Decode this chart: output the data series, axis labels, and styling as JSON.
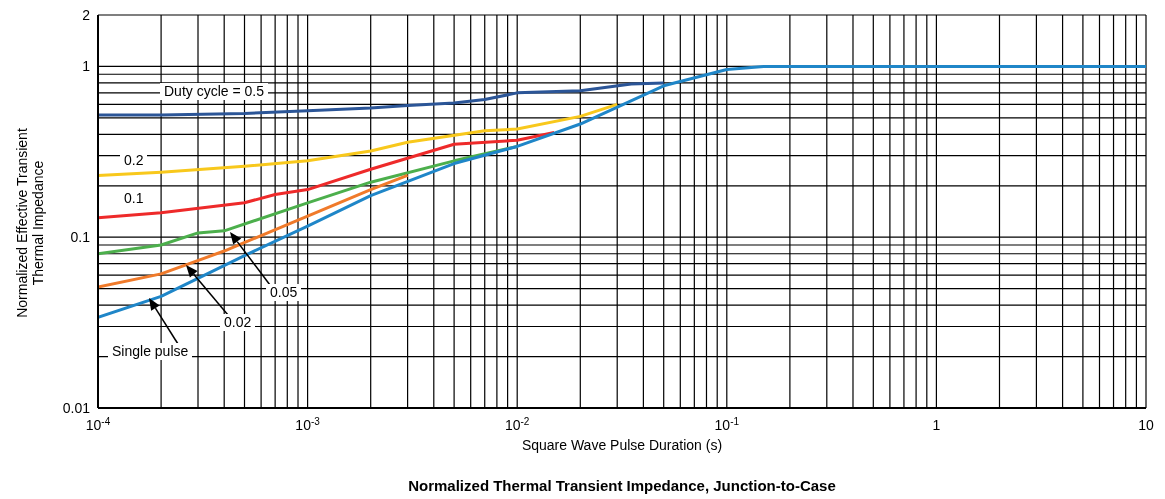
{
  "chart_data": {
    "type": "line",
    "title": "Normalized Thermal Transient Impedance, Junction-to-Case",
    "xlabel": "Square Wave Pulse Duration (s)",
    "ylabel": "Normalized Effective Transient Thermal Impedance",
    "log": "xy",
    "grid": true,
    "legend": false,
    "marker": "none",
    "line_style": "solid",
    "xlim": [
      0.0001,
      10
    ],
    "ylim": [
      0.01,
      2
    ],
    "xticks": [
      {
        "value": 0.0001,
        "label": "10$^{-4}$"
      },
      {
        "value": 0.0002,
        "label": null
      },
      {
        "value": 0.0003,
        "label": null
      },
      {
        "value": 0.0004,
        "label": null
      },
      {
        "value": 0.0005,
        "label": null
      },
      {
        "value": 0.0006,
        "label": null
      },
      {
        "value": 0.0007,
        "label": null
      },
      {
        "value": 0.0008,
        "label": null
      },
      {
        "value": 0.0009,
        "label": null
      },
      {
        "value": 0.001,
        "label": "10$^{-3}$"
      },
      {
        "value": 0.002,
        "label": null
      },
      {
        "value": 0.003,
        "label": null
      },
      {
        "value": 0.004,
        "label": null
      },
      {
        "value": 0.005,
        "label": null
      },
      {
        "value": 0.006,
        "label": null
      },
      {
        "value": 0.007,
        "label": null
      },
      {
        "value": 0.008,
        "label": null
      },
      {
        "value": 0.009,
        "label": null
      },
      {
        "value": 0.01,
        "label": "10$^{-2}$"
      },
      {
        "value": 0.02,
        "label": null
      },
      {
        "value": 0.03,
        "label": null
      },
      {
        "value": 0.04,
        "label": null
      },
      {
        "value": 0.05,
        "label": null
      },
      {
        "value": 0.06,
        "label": null
      },
      {
        "value": 0.07,
        "label": null
      },
      {
        "value": 0.08,
        "label": null
      },
      {
        "value": 0.09,
        "label": null
      },
      {
        "value": 0.1,
        "label": "10$^{-1}$"
      },
      {
        "value": 0.2,
        "label": null
      },
      {
        "value": 0.3,
        "label": null
      },
      {
        "value": 0.4,
        "label": null
      },
      {
        "value": 0.5,
        "label": null
      },
      {
        "value": 0.6,
        "label": null
      },
      {
        "value": 0.7,
        "label": null
      },
      {
        "value": 0.8,
        "label": null
      },
      {
        "value": 0.9,
        "label": null
      },
      1,
      {
        "value": 2,
        "label": null
      },
      {
        "value": 3,
        "label": null
      },
      {
        "value": 4,
        "label": null
      },
      {
        "value": 5,
        "label": null
      },
      {
        "value": 6,
        "label": null
      },
      {
        "value": 7,
        "label": null
      },
      {
        "value": 8,
        "label": null
      },
      {
        "value": 9,
        "label": null
      },
      10
    ],
    "yticks": [
      0.01,
      {
        "value": 0.02,
        "label": null
      },
      {
        "value": 0.03,
        "label": null
      },
      {
        "value": 0.04,
        "label": null
      },
      {
        "value": 0.05,
        "label": null
      },
      {
        "value": 0.06,
        "label": null
      },
      {
        "value": 0.07,
        "label": null
      },
      {
        "value": 0.08,
        "label": null
      },
      {
        "value": 0.09,
        "label": null
      },
      0.1,
      {
        "value": 0.2,
        "label": null
      },
      {
        "value": 0.3,
        "label": null
      },
      {
        "value": 0.4,
        "label": null
      },
      {
        "value": 0.5,
        "label": null
      },
      {
        "value": 0.6,
        "label": null
      },
      {
        "value": 0.7,
        "label": null
      },
      {
        "value": 0.8,
        "label": null
      },
      {
        "value": 0.9,
        "label": null
      },
      1,
      2
    ],
    "series": [
      {
        "name": "Duty cycle = 0.5",
        "color": "#2b5597",
        "x": [
          0.0001,
          0.0002,
          0.0005,
          0.001,
          0.002,
          0.003,
          0.005,
          0.007,
          0.01,
          0.02,
          0.035,
          0.05
        ],
        "values": [
          0.52,
          0.52,
          0.53,
          0.55,
          0.57,
          0.59,
          0.61,
          0.64,
          0.7,
          0.72,
          0.79,
          0.8
        ]
      },
      {
        "name": "0.2",
        "color": "#f8c81c",
        "x": [
          0.0001,
          0.0002,
          0.0005,
          0.001,
          0.002,
          0.003,
          0.007,
          0.01,
          0.02,
          0.03
        ],
        "values": [
          0.23,
          0.24,
          0.26,
          0.28,
          0.32,
          0.36,
          0.42,
          0.43,
          0.51,
          0.6
        ]
      },
      {
        "name": "0.1",
        "color": "#ee2a2a",
        "x": [
          0.0001,
          0.0002,
          0.0005,
          0.0007,
          0.001,
          0.002,
          0.005,
          0.01,
          0.015
        ],
        "values": [
          0.13,
          0.139,
          0.159,
          0.178,
          0.19,
          0.25,
          0.35,
          0.37,
          0.41
        ]
      },
      {
        "name": "0.05",
        "color": "#4caf4c",
        "x": [
          0.0001,
          0.0002,
          0.0003,
          0.0004,
          0.001,
          0.002,
          0.005,
          0.01
        ],
        "values": [
          0.08,
          0.09,
          0.106,
          0.109,
          0.159,
          0.21,
          0.28,
          0.34
        ]
      },
      {
        "name": "0.02",
        "color": "#f07a2a",
        "x": [
          0.0001,
          0.0002,
          0.0004,
          0.001,
          0.002,
          0.003
        ],
        "values": [
          0.051,
          0.061,
          0.083,
          0.133,
          0.19,
          0.23
        ]
      },
      {
        "name": "Single pulse",
        "color": "#1f86c8",
        "x": [
          0.0001,
          0.0002,
          0.0005,
          0.001,
          0.002,
          0.005,
          0.01,
          0.02,
          0.05,
          0.1,
          0.15,
          10
        ],
        "values": [
          0.034,
          0.045,
          0.078,
          0.116,
          0.175,
          0.27,
          0.34,
          0.46,
          0.77,
          0.96,
          1.0,
          1.0
        ]
      }
    ]
  }
}
